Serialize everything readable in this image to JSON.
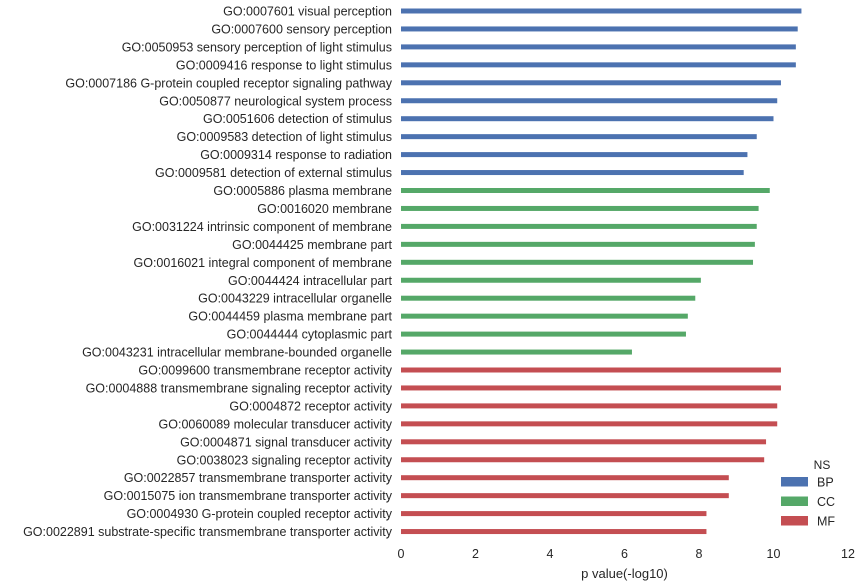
{
  "chart_data": {
    "type": "bar",
    "orientation": "horizontal",
    "xlabel": "p value(-log10)",
    "xlim": [
      0,
      12
    ],
    "xticks": [
      0,
      2,
      4,
      6,
      8,
      10,
      12
    ],
    "grid": false,
    "legend": {
      "title": "NS",
      "placement": "bottom-right",
      "entries": [
        {
          "name": "BP",
          "color": "#4C72B0"
        },
        {
          "name": "CC",
          "color": "#55A868"
        },
        {
          "name": "MF",
          "color": "#C44E52"
        }
      ]
    },
    "bars": [
      {
        "label": "GO:0007601 visual perception",
        "value": 10.75,
        "group": "BP"
      },
      {
        "label": "GO:0007600 sensory perception",
        "value": 10.65,
        "group": "BP"
      },
      {
        "label": "GO:0050953 sensory perception of light stimulus",
        "value": 10.6,
        "group": "BP"
      },
      {
        "label": "GO:0009416 response to light stimulus",
        "value": 10.6,
        "group": "BP"
      },
      {
        "label": "GO:0007186 G-protein coupled receptor signaling pathway",
        "value": 10.2,
        "group": "BP"
      },
      {
        "label": "GO:0050877 neurological system process",
        "value": 10.1,
        "group": "BP"
      },
      {
        "label": "GO:0051606 detection of stimulus",
        "value": 10.0,
        "group": "BP"
      },
      {
        "label": "GO:0009583 detection of light stimulus",
        "value": 9.55,
        "group": "BP"
      },
      {
        "label": "GO:0009314 response to radiation",
        "value": 9.3,
        "group": "BP"
      },
      {
        "label": "GO:0009581 detection of external stimulus",
        "value": 9.2,
        "group": "BP"
      },
      {
        "label": "GO:0005886 plasma membrane",
        "value": 9.9,
        "group": "CC"
      },
      {
        "label": "GO:0016020 membrane",
        "value": 9.6,
        "group": "CC"
      },
      {
        "label": "GO:0031224 intrinsic component of membrane",
        "value": 9.55,
        "group": "CC"
      },
      {
        "label": "GO:0044425 membrane part",
        "value": 9.5,
        "group": "CC"
      },
      {
        "label": "GO:0016021 integral component of membrane",
        "value": 9.45,
        "group": "CC"
      },
      {
        "label": "GO:0044424 intracellular part",
        "value": 8.05,
        "group": "CC"
      },
      {
        "label": "GO:0043229 intracellular organelle",
        "value": 7.9,
        "group": "CC"
      },
      {
        "label": "GO:0044459 plasma membrane part",
        "value": 7.7,
        "group": "CC"
      },
      {
        "label": "GO:0044444 cytoplasmic part",
        "value": 7.65,
        "group": "CC"
      },
      {
        "label": "GO:0043231 intracellular membrane-bounded organelle",
        "value": 6.2,
        "group": "CC"
      },
      {
        "label": "GO:0099600 transmembrane receptor activity",
        "value": 10.2,
        "group": "MF"
      },
      {
        "label": "GO:0004888 transmembrane signaling receptor activity",
        "value": 10.2,
        "group": "MF"
      },
      {
        "label": "GO:0004872 receptor activity",
        "value": 10.1,
        "group": "MF"
      },
      {
        "label": "GO:0060089 molecular transducer activity",
        "value": 10.1,
        "group": "MF"
      },
      {
        "label": "GO:0004871 signal transducer activity",
        "value": 9.8,
        "group": "MF"
      },
      {
        "label": "GO:0038023 signaling receptor activity",
        "value": 9.75,
        "group": "MF"
      },
      {
        "label": "GO:0022857 transmembrane transporter activity",
        "value": 8.8,
        "group": "MF"
      },
      {
        "label": "GO:0015075 ion transmembrane transporter activity",
        "value": 8.8,
        "group": "MF"
      },
      {
        "label": "GO:0004930 G-protein coupled receptor activity",
        "value": 8.2,
        "group": "MF"
      },
      {
        "label": "GO:0022891 substrate-specific transmembrane transporter activity",
        "value": 8.2,
        "group": "MF"
      }
    ]
  }
}
